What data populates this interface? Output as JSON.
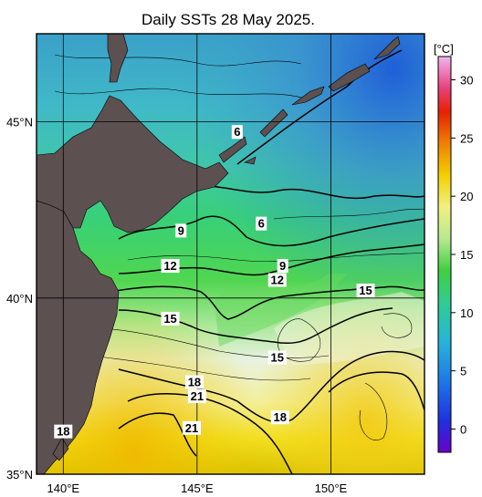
{
  "title": "Daily SSTs 28 May 2025.",
  "map": {
    "lat_labels": [
      "45°N",
      "40°N",
      "35°N"
    ],
    "lon_labels": [
      "140°E",
      "145°E",
      "150°E"
    ],
    "lat_range": [
      35,
      47.5
    ],
    "lon_range": [
      139,
      153.5
    ]
  },
  "colorbar": {
    "unit": "[°C]",
    "ticks": [
      "0",
      "5",
      "10",
      "15",
      "20",
      "25",
      "30"
    ],
    "range": [
      -2,
      32
    ]
  },
  "contour_labels": [
    {
      "text": "6",
      "lon": 146.5,
      "lat": 44.7
    },
    {
      "text": "6",
      "lon": 147.4,
      "lat": 42.1
    },
    {
      "text": "9",
      "lon": 144.4,
      "lat": 41.9
    },
    {
      "text": "9",
      "lon": 148.2,
      "lat": 40.9
    },
    {
      "text": "12",
      "lon": 144.0,
      "lat": 40.9
    },
    {
      "text": "12",
      "lon": 148.0,
      "lat": 40.5
    },
    {
      "text": "15",
      "lon": 151.3,
      "lat": 40.2
    },
    {
      "text": "15",
      "lon": 144.0,
      "lat": 39.4
    },
    {
      "text": "15",
      "lon": 148.0,
      "lat": 38.3
    },
    {
      "text": "18",
      "lon": 144.9,
      "lat": 37.6
    },
    {
      "text": "21",
      "lon": 145.0,
      "lat": 37.2
    },
    {
      "text": "18",
      "lon": 148.1,
      "lat": 36.6
    },
    {
      "text": "21",
      "lon": 144.8,
      "lat": 36.3
    },
    {
      "text": "18",
      "lon": 140.0,
      "lat": 36.2
    }
  ]
}
